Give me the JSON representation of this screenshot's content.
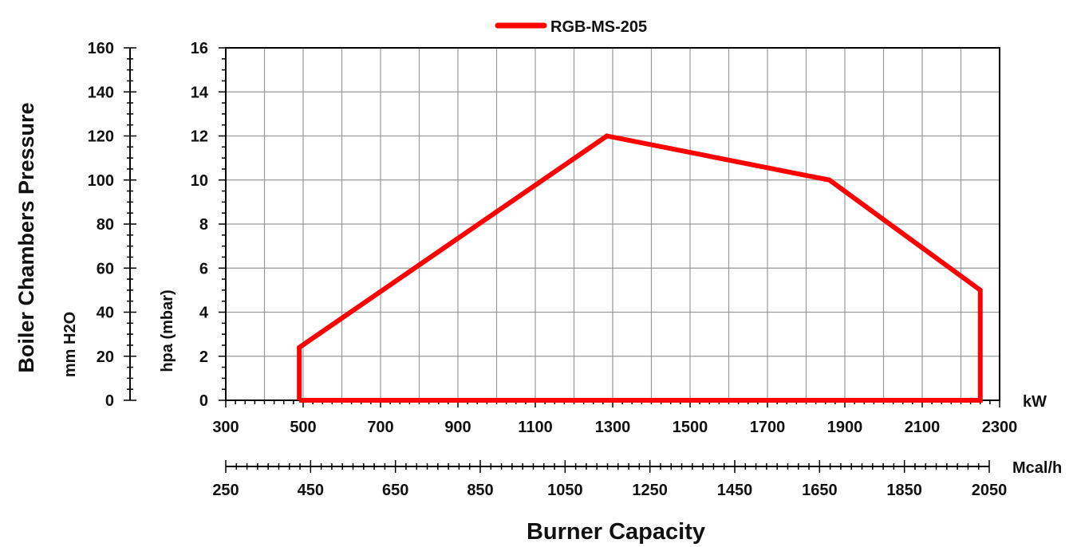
{
  "chart_data": {
    "type": "line",
    "title": "",
    "xlabel": "Burner Capacity",
    "x_unit_primary": "kW",
    "x_unit_secondary": "Mcal/h",
    "ylabel": "Boiler Chambers Pressure",
    "ylabel_primary": "hpa (mbar)",
    "ylabel_secondary": "mm H2O",
    "xlim": [
      300,
      2300
    ],
    "ylim": [
      0,
      16
    ],
    "secondary_xlim": [
      250,
      2050
    ],
    "secondary_ylim": [
      0,
      160
    ],
    "grid": true,
    "legend_position": "top-center",
    "x_ticks": [
      300,
      500,
      700,
      900,
      1100,
      1300,
      1500,
      1700,
      1900,
      2100,
      2300
    ],
    "y_ticks": [
      0,
      2,
      4,
      6,
      8,
      10,
      12,
      14,
      16
    ],
    "secondary_x_ticks": [
      250,
      450,
      650,
      850,
      1050,
      1250,
      1450,
      1650,
      1850,
      2050
    ],
    "secondary_y_ticks": [
      0,
      20,
      40,
      60,
      80,
      100,
      120,
      140,
      160
    ],
    "series": [
      {
        "name": "RGB-MS-205",
        "color": "#ff0000",
        "x": [
          490,
          490,
          1285,
          1860,
          2250,
          2250,
          490
        ],
        "y": [
          0,
          2.4,
          12,
          10,
          5,
          0,
          0
        ]
      }
    ]
  }
}
